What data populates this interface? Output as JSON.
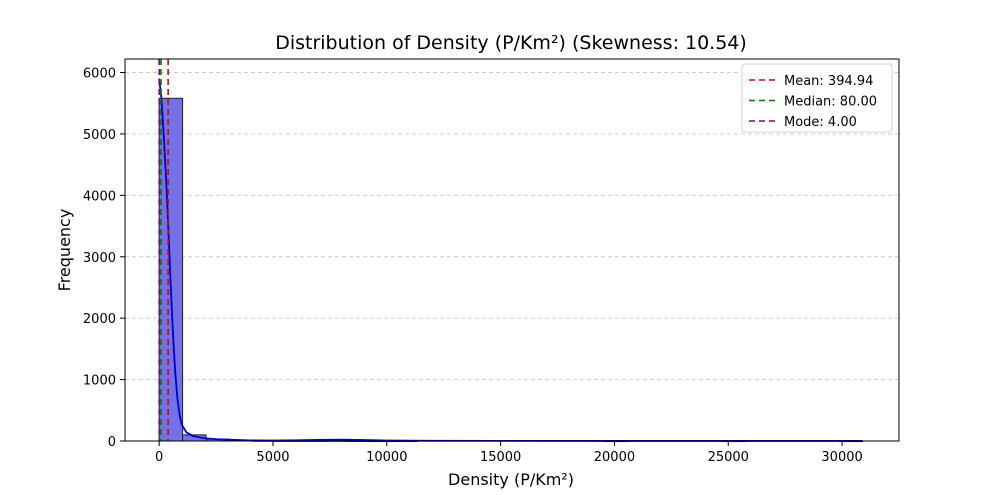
{
  "chart_data": {
    "type": "bar",
    "title": "Distribution of Density (P/Km²) (Skewness: 10.54)",
    "xlabel": "Density (P/Km²)",
    "ylabel": "Frequency",
    "xlim": [
      -1500,
      32500
    ],
    "ylim": [
      0,
      6220
    ],
    "x_ticks": [
      0,
      5000,
      10000,
      15000,
      20000,
      25000,
      30000
    ],
    "x_tick_labels": [
      "0",
      "5000",
      "10000",
      "15000",
      "20000",
      "25000",
      "30000"
    ],
    "y_ticks": [
      0,
      1000,
      2000,
      3000,
      4000,
      5000,
      6000
    ],
    "y_tick_labels": [
      "0",
      "1000",
      "2000",
      "3000",
      "4000",
      "5000",
      "6000"
    ],
    "grid": "y-dashed",
    "legend_position": "top-right",
    "bin_width": 1030,
    "bins": [
      {
        "start": 0,
        "count": 5580
      },
      {
        "start": 1030,
        "count": 100
      },
      {
        "start": 2060,
        "count": 30
      },
      {
        "start": 3090,
        "count": 15
      },
      {
        "start": 4120,
        "count": 5
      },
      {
        "start": 5150,
        "count": 3
      },
      {
        "start": 6180,
        "count": 3
      },
      {
        "start": 7210,
        "count": 4
      },
      {
        "start": 8240,
        "count": 2
      },
      {
        "start": 9270,
        "count": 1
      },
      {
        "start": 10300,
        "count": 1
      },
      {
        "start": 11330,
        "count": 0
      },
      {
        "start": 12360,
        "count": 0
      },
      {
        "start": 13390,
        "count": 0
      },
      {
        "start": 14420,
        "count": 0
      },
      {
        "start": 15450,
        "count": 0
      },
      {
        "start": 16480,
        "count": 0
      },
      {
        "start": 17510,
        "count": 0
      },
      {
        "start": 18540,
        "count": 0
      },
      {
        "start": 19570,
        "count": 1
      },
      {
        "start": 20600,
        "count": 0
      },
      {
        "start": 21630,
        "count": 0
      },
      {
        "start": 22660,
        "count": 0
      },
      {
        "start": 23690,
        "count": 0
      },
      {
        "start": 24720,
        "count": 1
      },
      {
        "start": 25750,
        "count": 0
      },
      {
        "start": 26780,
        "count": 0
      },
      {
        "start": 27810,
        "count": 0
      },
      {
        "start": 28840,
        "count": 0
      },
      {
        "start": 29870,
        "count": 1
      }
    ],
    "kde": {
      "x": [
        0,
        100,
        200,
        300,
        400,
        500,
        600,
        700,
        800,
        900,
        1000,
        1200,
        1500,
        2000,
        2500,
        3000,
        3500,
        4000,
        5000,
        6000,
        7000,
        8000,
        9000,
        10000,
        12000,
        15000,
        20000,
        25000,
        30900
      ],
      "y": [
        5900,
        5580,
        5000,
        4300,
        3500,
        2600,
        1800,
        1150,
        700,
        420,
        260,
        140,
        80,
        45,
        30,
        22,
        15,
        10,
        8,
        12,
        18,
        22,
        16,
        8,
        3,
        2,
        1,
        1,
        1
      ]
    },
    "bar_color": "#7272e6",
    "bar_edge_color": "#222222",
    "kde_color": "#0000cc",
    "reference_lines": [
      {
        "label": "Mean: 394.94",
        "value": 394.94,
        "color": "#dd0000"
      },
      {
        "label": "Median: 80.00",
        "value": 80.0,
        "color": "#007700"
      },
      {
        "label": "Mode: 4.00",
        "value": 4.0,
        "color": "#800080"
      }
    ]
  }
}
